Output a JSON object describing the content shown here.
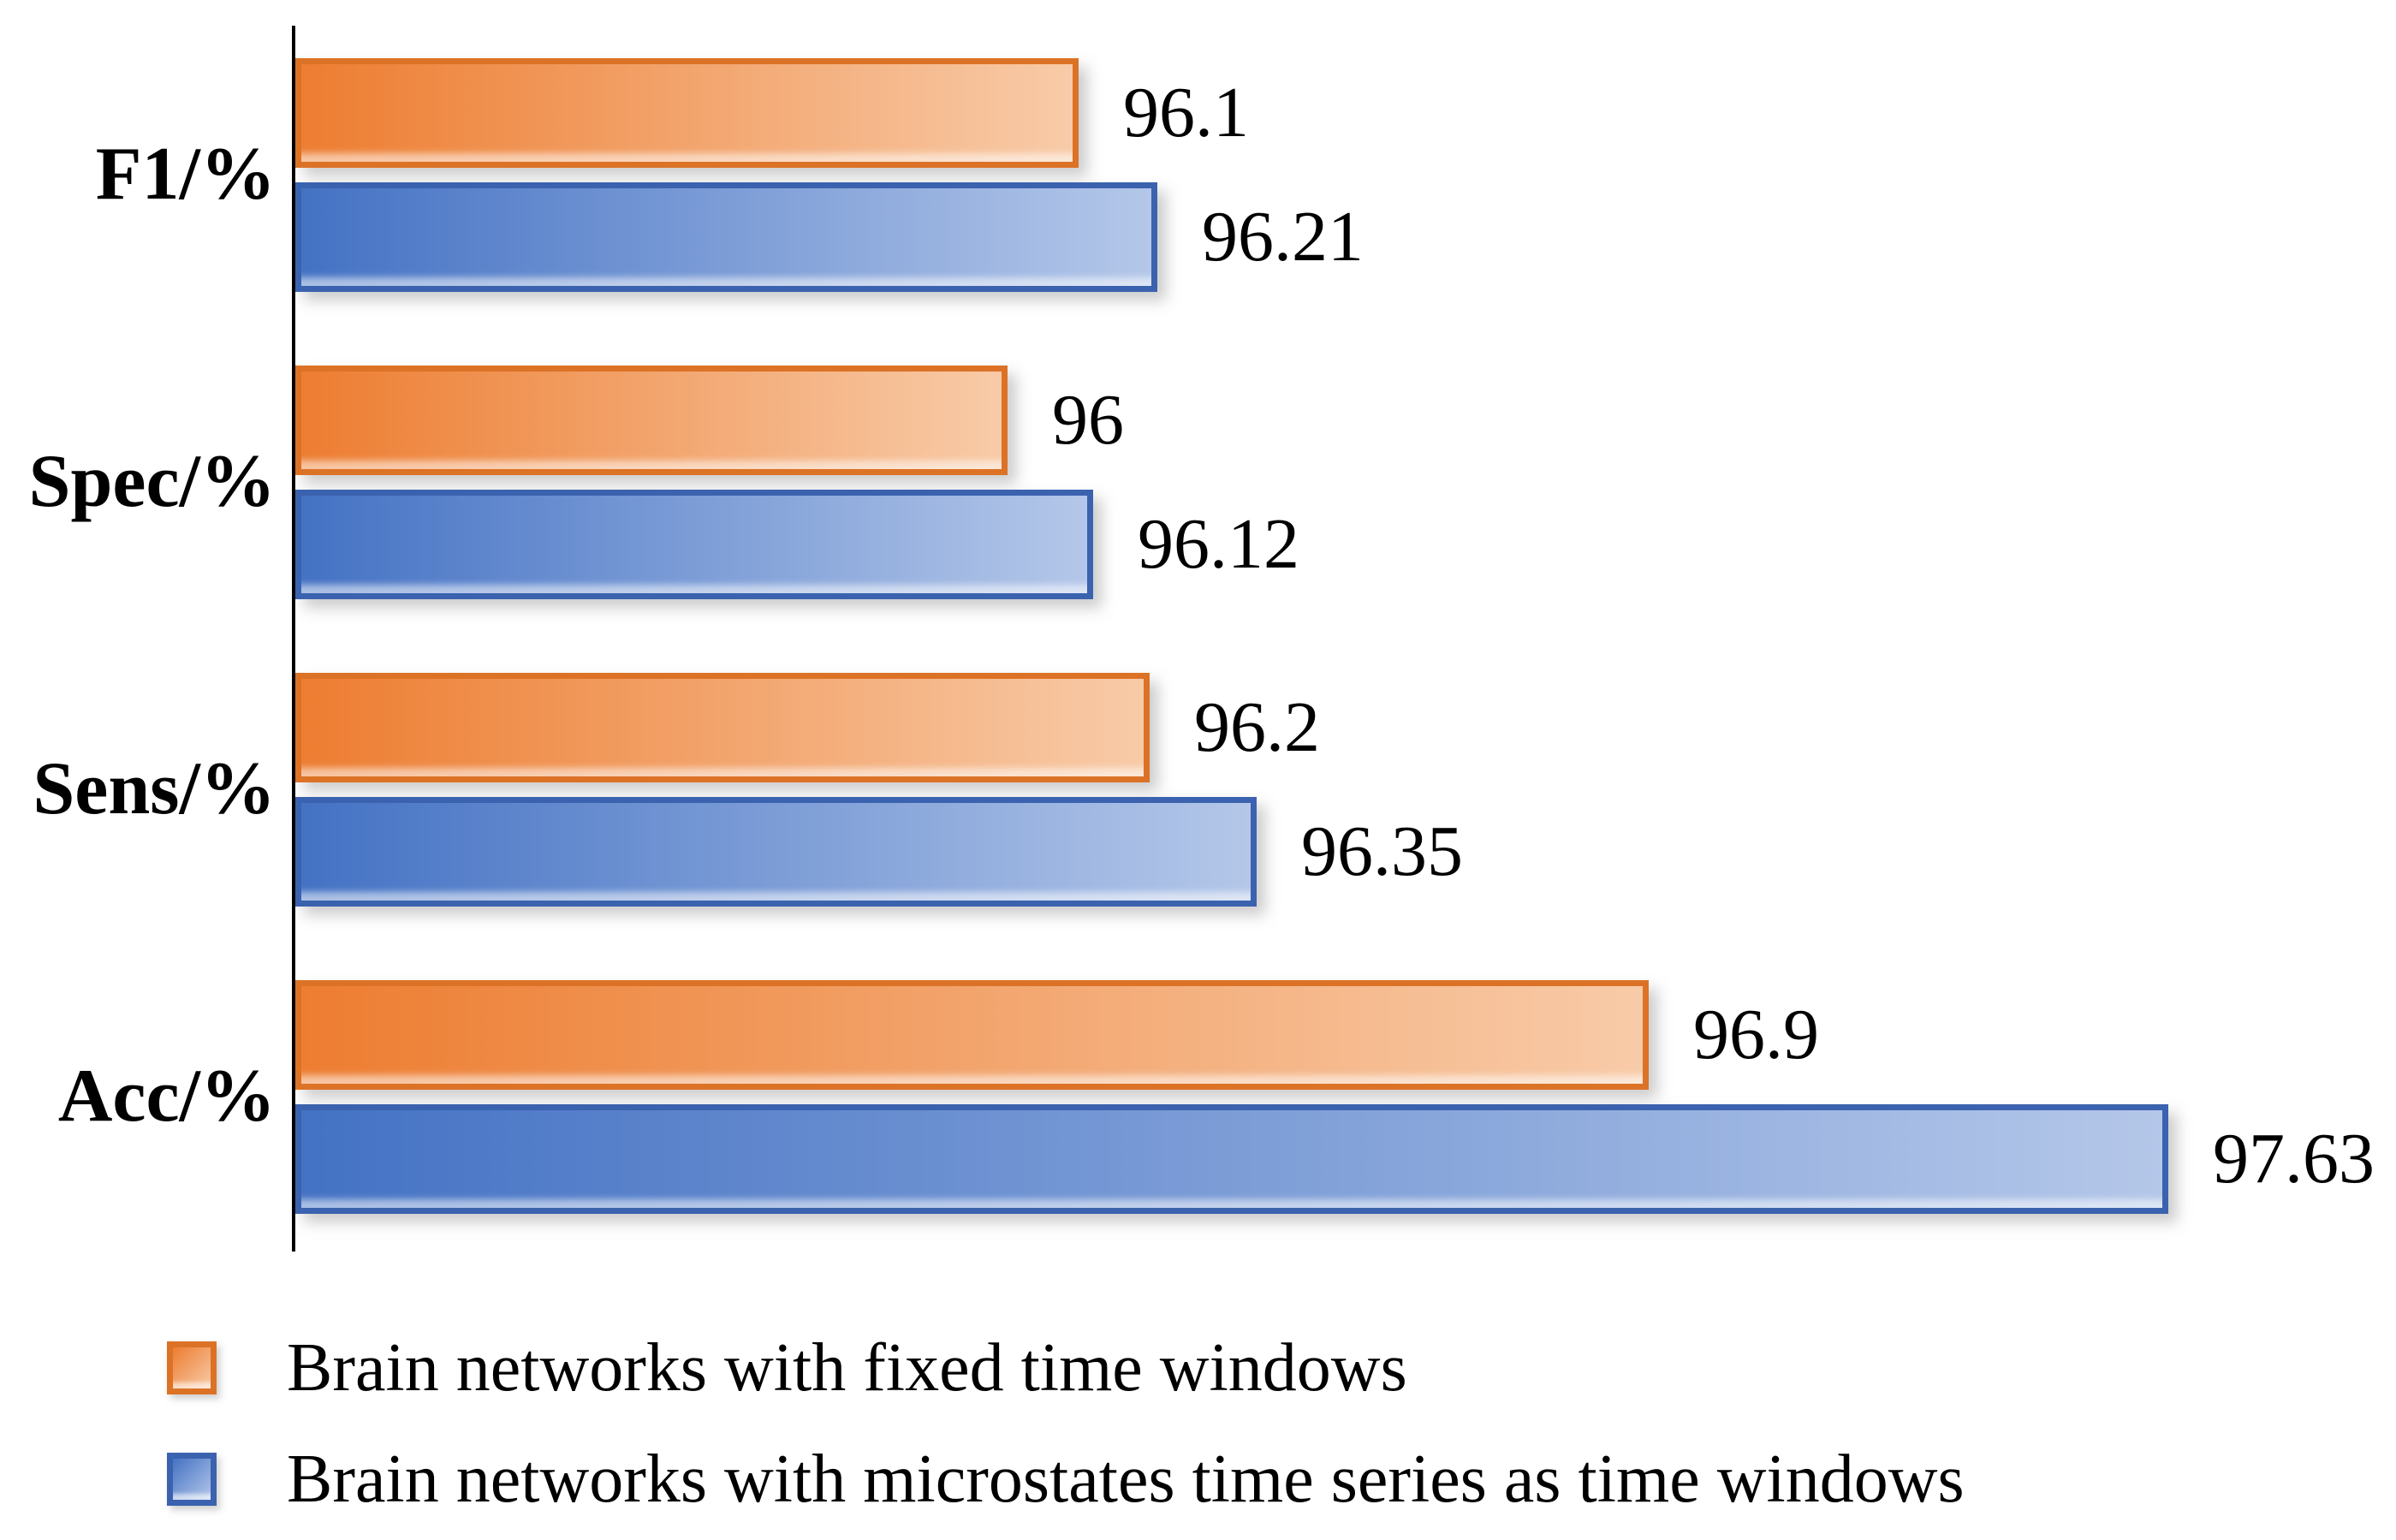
{
  "chart_data": {
    "type": "bar",
    "orientation": "horizontal",
    "title": "",
    "xlabel": "",
    "ylabel": "",
    "grid": false,
    "value_labels": true,
    "legend_position": "bottom-left",
    "axis_color": "#000000",
    "text_color": "#000000",
    "xlim": [
      95,
      97.95
    ],
    "categories": [
      "F1/%",
      "Spec/%",
      "Sens/%",
      "Acc/%"
    ],
    "series": [
      {
        "name": "Brain networks with fixed time windows",
        "values": [
          96.1,
          96,
          96.2,
          96.9
        ],
        "labels": [
          "96.1",
          "96",
          "96.2",
          "96.9"
        ],
        "color_start": "#ED7D31",
        "color_end": "#F8CBA8",
        "border_color": "#DC7226"
      },
      {
        "name": "Brain networks with microstates time series as time windows",
        "values": [
          96.21,
          96.12,
          96.35,
          97.63
        ],
        "labels": [
          "96.21",
          "96.12",
          "96.35",
          "97.63"
        ],
        "color_start": "#4472C4",
        "color_end": "#B4C7E9",
        "border_color": "#3B62AE"
      }
    ]
  }
}
